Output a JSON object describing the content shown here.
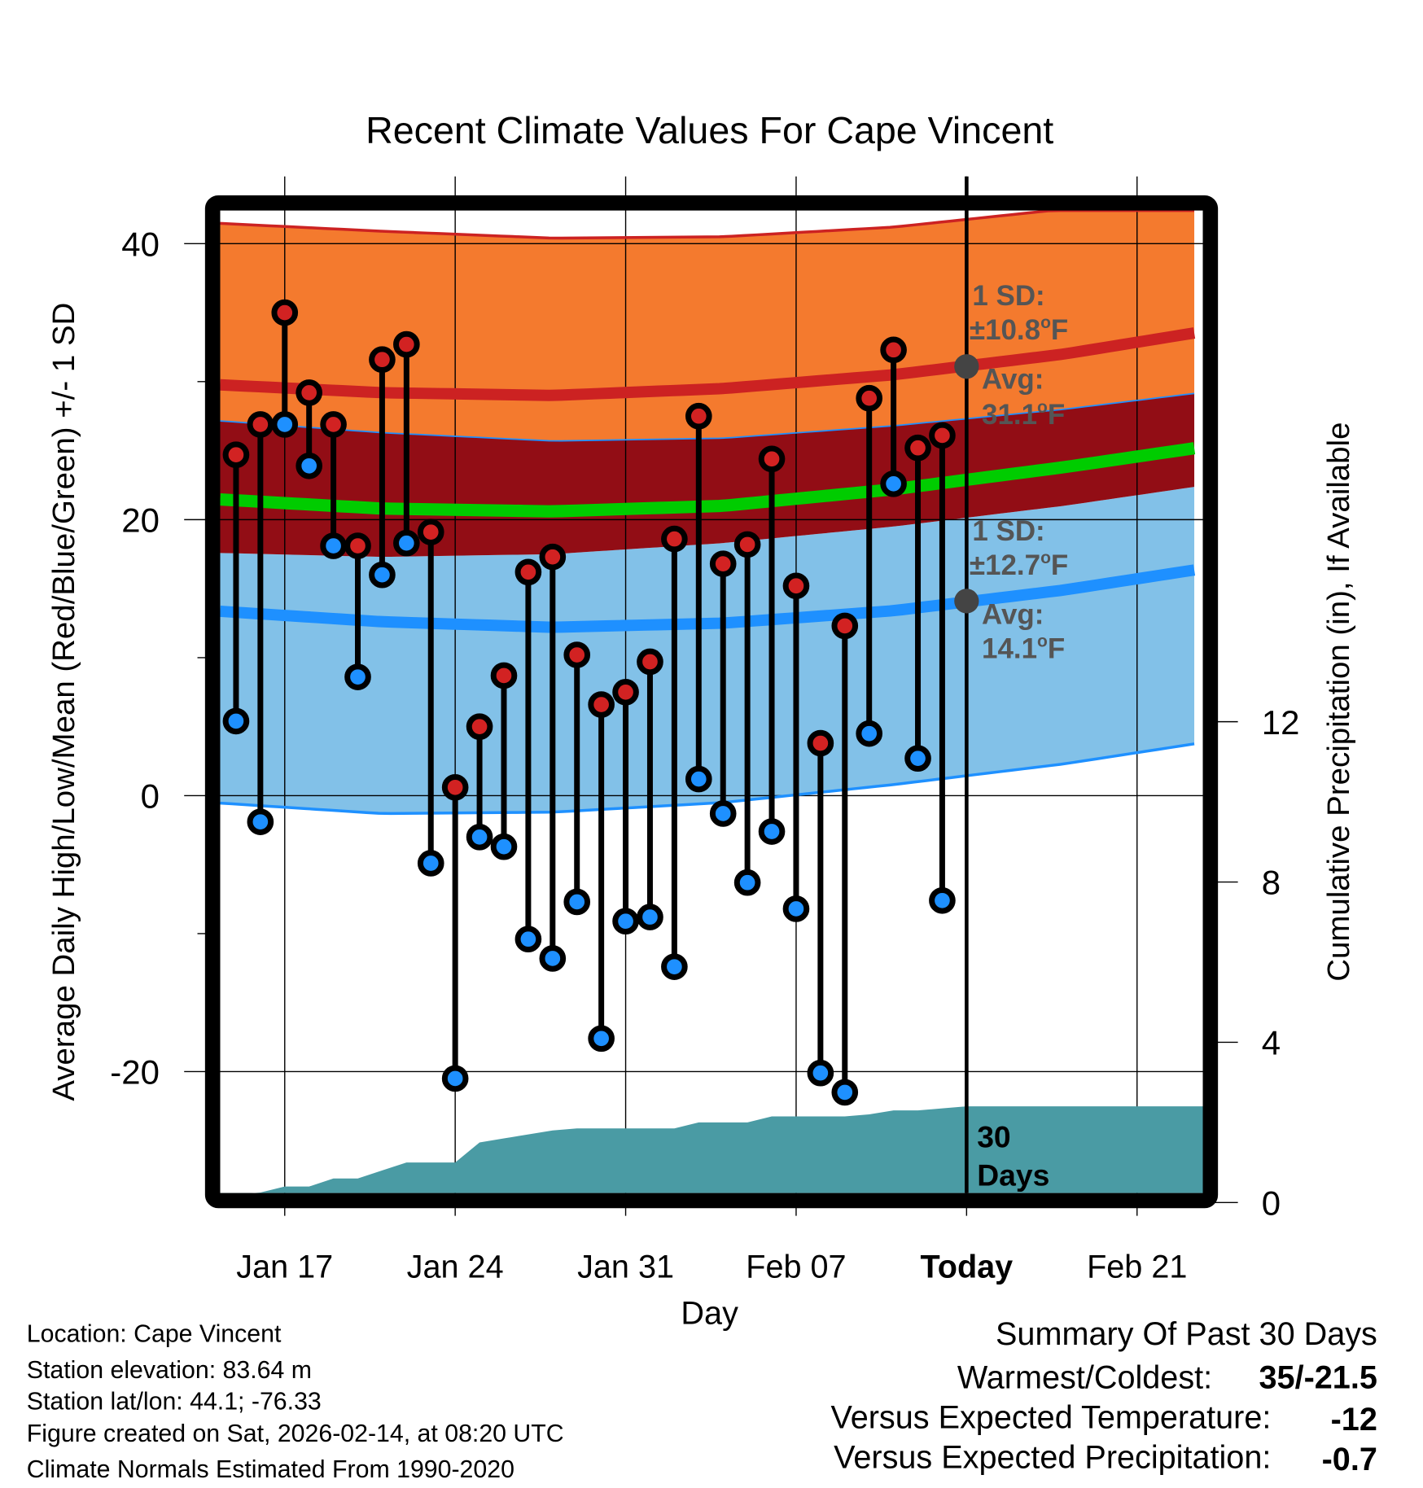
{
  "chart_data": {
    "type": "line",
    "title": "Recent Climate Values For Cape Vincent",
    "xlabel": "Day",
    "ylabel": "Average Daily High/Low/Mean (Red/Blue/Green) +/- 1 SD",
    "y2label": "Cumulative Precipitation (in), If Available",
    "xlim_day_of_year": [
      14.35,
      54.7
    ],
    "ylim": [
      -28.8,
      42.4
    ],
    "y2lim": [
      0,
      24.5
    ],
    "grid": true,
    "x_ticks": [
      {
        "day": 17,
        "label": "Jan 17"
      },
      {
        "day": 24,
        "label": "Jan 24"
      },
      {
        "day": 31,
        "label": "Jan 31"
      },
      {
        "day": 38,
        "label": "Feb 07"
      },
      {
        "day": 45,
        "label": "Today"
      },
      {
        "day": 52,
        "label": "Feb 21"
      }
    ],
    "y_ticks": [
      {
        "v": 40,
        "label": "40"
      },
      {
        "v": 20,
        "label": "20"
      },
      {
        "v": 0,
        "label": "0"
      },
      {
        "v": -20,
        "label": "-20"
      }
    ],
    "y_minor_ticks": [
      30,
      10,
      -10
    ],
    "y2_ticks": [
      {
        "v": 0,
        "label": "0"
      },
      {
        "v": 4,
        "label": "4"
      },
      {
        "v": 8,
        "label": "8"
      },
      {
        "v": 12,
        "label": "12"
      }
    ],
    "today_day": 45,
    "normals": {
      "days": [
        14,
        21,
        28,
        35,
        42,
        49,
        56
      ],
      "high_upper": [
        41.5,
        40.9,
        40.4,
        40.5,
        41.2,
        42.5,
        44.0
      ],
      "high_avg": [
        29.8,
        29.2,
        29.0,
        29.5,
        30.5,
        32.0,
        34.0
      ],
      "high_lower": [
        27.2,
        26.3,
        25.7,
        25.9,
        26.8,
        28.0,
        29.5
      ],
      "mean": [
        21.5,
        20.8,
        20.6,
        21.0,
        22.2,
        23.8,
        25.6
      ],
      "low_upper": [
        17.6,
        17.3,
        17.5,
        18.3,
        19.5,
        21.0,
        22.8
      ],
      "low_avg": [
        13.4,
        12.6,
        12.2,
        12.5,
        13.4,
        14.9,
        16.8
      ],
      "low_lower": [
        -0.5,
        -1.3,
        -1.2,
        -0.5,
        0.8,
        2.3,
        4.2
      ]
    },
    "daily": {
      "days": [
        15,
        16,
        17,
        18,
        19,
        20,
        21,
        22,
        23,
        24,
        25,
        26,
        27,
        28,
        29,
        30,
        31,
        32,
        33,
        34,
        35,
        36,
        37,
        38,
        39,
        40,
        41,
        42,
        43,
        44
      ],
      "high": [
        24.7,
        26.9,
        35,
        29.2,
        26.9,
        18.1,
        31.6,
        32.7,
        19.1,
        0.6,
        5.0,
        8.7,
        16.2,
        17.3,
        10.2,
        6.6,
        7.5,
        9.7,
        18.6,
        27.5,
        16.8,
        18.2,
        24.4,
        15.2,
        3.8,
        12.3,
        28.8,
        32.3,
        25.2,
        26.1
      ],
      "low": [
        5.4,
        -1.9,
        26.9,
        23.9,
        18.1,
        8.6,
        16.0,
        18.3,
        -4.9,
        -20.5,
        -3.0,
        -3.7,
        -10.4,
        -11.8,
        -7.7,
        -17.6,
        -9.1,
        -8.8,
        -12.4,
        1.2,
        -1.3,
        -6.3,
        -2.6,
        -8.2,
        -20.1,
        -21.5,
        4.5,
        22.6,
        2.7,
        -7.6
      ]
    },
    "precip_cumulative": {
      "days": [
        14.35,
        15,
        16,
        17,
        18,
        19,
        20,
        21,
        22,
        23,
        24,
        25,
        26,
        27,
        28,
        29,
        30,
        31,
        32,
        33,
        34,
        35,
        36,
        37,
        38,
        39,
        40,
        41,
        42,
        43,
        44,
        45,
        54.7
      ],
      "values": [
        0,
        0.2,
        0.25,
        0.4,
        0.4,
        0.6,
        0.6,
        0.8,
        1.0,
        1.0,
        1.0,
        1.5,
        1.6,
        1.7,
        1.8,
        1.85,
        1.85,
        1.85,
        1.85,
        1.85,
        2.0,
        2.0,
        2.0,
        2.15,
        2.15,
        2.15,
        2.15,
        2.2,
        2.3,
        2.3,
        2.35,
        2.4,
        2.4
      ]
    },
    "annotations": {
      "high_sd_label": "1 SD:",
      "high_sd_value": "±10.8",
      "high_avg_label": "Avg:",
      "high_avg_value": "31.1",
      "high_avg": 31.1,
      "low_sd_label": "1 SD:",
      "low_sd_value": "±12.7",
      "low_avg_label": "Avg:",
      "low_avg_value": "14.1",
      "low_avg": 14.1,
      "degree_unit": "F",
      "degree_sup": "o",
      "precip_label_1": "30",
      "precip_label_2": "Days"
    },
    "colors": {
      "orange": "#f47a2e",
      "high_line": "#cc2222",
      "overlap": "#920d15",
      "green": "#00cc00",
      "lightblue": "#82c1e8",
      "blue": "#1e90ff",
      "precip": "#4a9ba4",
      "red_dot": "#d22222",
      "blue_dot": "#1e90ff"
    }
  },
  "footer": {
    "location": "Location: Cape Vincent",
    "elevation": "Station elevation: 83.64 m",
    "latlon": "Station lat/lon: 44.1; -76.33",
    "created": "Figure created on Sat, 2026-02-14, at 08:20 UTC",
    "normals": "Climate Normals Estimated From 1990-2020"
  },
  "summary": {
    "title": "Summary Of Past 30 Days",
    "warmest_label": "Warmest/Coldest:",
    "warmest_value": "35/-21.5",
    "temp_label": "Versus Expected Temperature:",
    "temp_value": "-12",
    "temp_color": "#1e90ff",
    "precip_label": "Versus Expected Precipitation:",
    "precip_value": "-0.7",
    "precip_color": "#a0522d"
  }
}
